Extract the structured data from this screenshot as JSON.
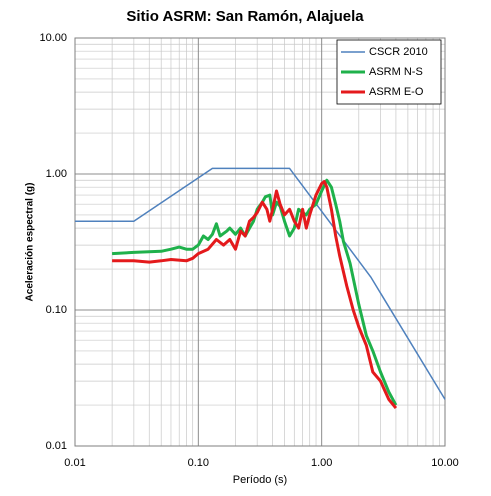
{
  "chart_data": {
    "type": "line",
    "title": "Sitio ASRM: San Ramón, Alajuela",
    "x_label": "Período (s)",
    "y_label": "Aceleración espectral (g)",
    "log_x": true,
    "log_y": true,
    "grid": true,
    "legend": "upper right",
    "xlim": [
      0.01,
      10
    ],
    "ylim": [
      0.01,
      10
    ],
    "xticks": [
      {
        "value": 0.01,
        "label": "0.01"
      },
      {
        "value": 0.1,
        "label": "0.10"
      },
      {
        "value": 1,
        "label": "1.00"
      },
      {
        "value": 10,
        "label": "10.00"
      }
    ],
    "yticks": [
      {
        "value": 0.01,
        "label": "0.01"
      },
      {
        "value": 0.1,
        "label": "0.10"
      },
      {
        "value": 1,
        "label": "1.00"
      },
      {
        "value": 10,
        "label": "10.00"
      }
    ],
    "series": [
      {
        "name": "CSCR 2010",
        "color": "#4f81bd",
        "width": 1.5,
        "x": [
          0.01,
          0.03,
          0.13,
          0.55,
          2.5,
          10
        ],
        "values": [
          0.45,
          0.45,
          1.1,
          1.1,
          0.175,
          0.022
        ]
      },
      {
        "name": "ASRM N-S",
        "color": "#1fb14b",
        "width": 3,
        "x": [
          0.02,
          0.03,
          0.05,
          0.06,
          0.07,
          0.08,
          0.09,
          0.1,
          0.11,
          0.12,
          0.13,
          0.14,
          0.15,
          0.17,
          0.18,
          0.2,
          0.22,
          0.24,
          0.26,
          0.28,
          0.3,
          0.33,
          0.35,
          0.38,
          0.4,
          0.43,
          0.46,
          0.5,
          0.55,
          0.6,
          0.65,
          0.7,
          0.75,
          0.8,
          0.9,
          1.0,
          1.1,
          1.2,
          1.3,
          1.4,
          1.5,
          1.7,
          2.0,
          2.3,
          2.6,
          3.0,
          3.5,
          4.0
        ],
        "values": [
          0.26,
          0.265,
          0.27,
          0.28,
          0.29,
          0.28,
          0.28,
          0.3,
          0.35,
          0.33,
          0.36,
          0.43,
          0.35,
          0.38,
          0.4,
          0.36,
          0.4,
          0.35,
          0.4,
          0.45,
          0.55,
          0.62,
          0.68,
          0.7,
          0.5,
          0.62,
          0.58,
          0.45,
          0.35,
          0.4,
          0.55,
          0.52,
          0.5,
          0.55,
          0.6,
          0.75,
          0.9,
          0.8,
          0.6,
          0.45,
          0.32,
          0.22,
          0.11,
          0.065,
          0.05,
          0.035,
          0.025,
          0.02
        ]
      },
      {
        "name": "ASRM E-O",
        "color": "#e41a1c",
        "width": 3,
        "x": [
          0.02,
          0.03,
          0.04,
          0.05,
          0.06,
          0.08,
          0.09,
          0.1,
          0.12,
          0.14,
          0.16,
          0.18,
          0.2,
          0.22,
          0.24,
          0.26,
          0.28,
          0.3,
          0.33,
          0.36,
          0.38,
          0.4,
          0.43,
          0.46,
          0.5,
          0.55,
          0.6,
          0.65,
          0.7,
          0.75,
          0.8,
          0.9,
          1.0,
          1.05,
          1.1,
          1.2,
          1.3,
          1.4,
          1.6,
          1.8,
          2.0,
          2.3,
          2.6,
          3.0,
          3.5,
          4.0
        ],
        "values": [
          0.23,
          0.23,
          0.225,
          0.23,
          0.235,
          0.23,
          0.24,
          0.26,
          0.28,
          0.33,
          0.3,
          0.33,
          0.28,
          0.38,
          0.35,
          0.45,
          0.48,
          0.52,
          0.62,
          0.55,
          0.45,
          0.55,
          0.75,
          0.6,
          0.5,
          0.55,
          0.45,
          0.4,
          0.55,
          0.4,
          0.5,
          0.7,
          0.85,
          0.88,
          0.8,
          0.55,
          0.35,
          0.25,
          0.15,
          0.1,
          0.075,
          0.055,
          0.035,
          0.03,
          0.022,
          0.019
        ]
      }
    ]
  }
}
